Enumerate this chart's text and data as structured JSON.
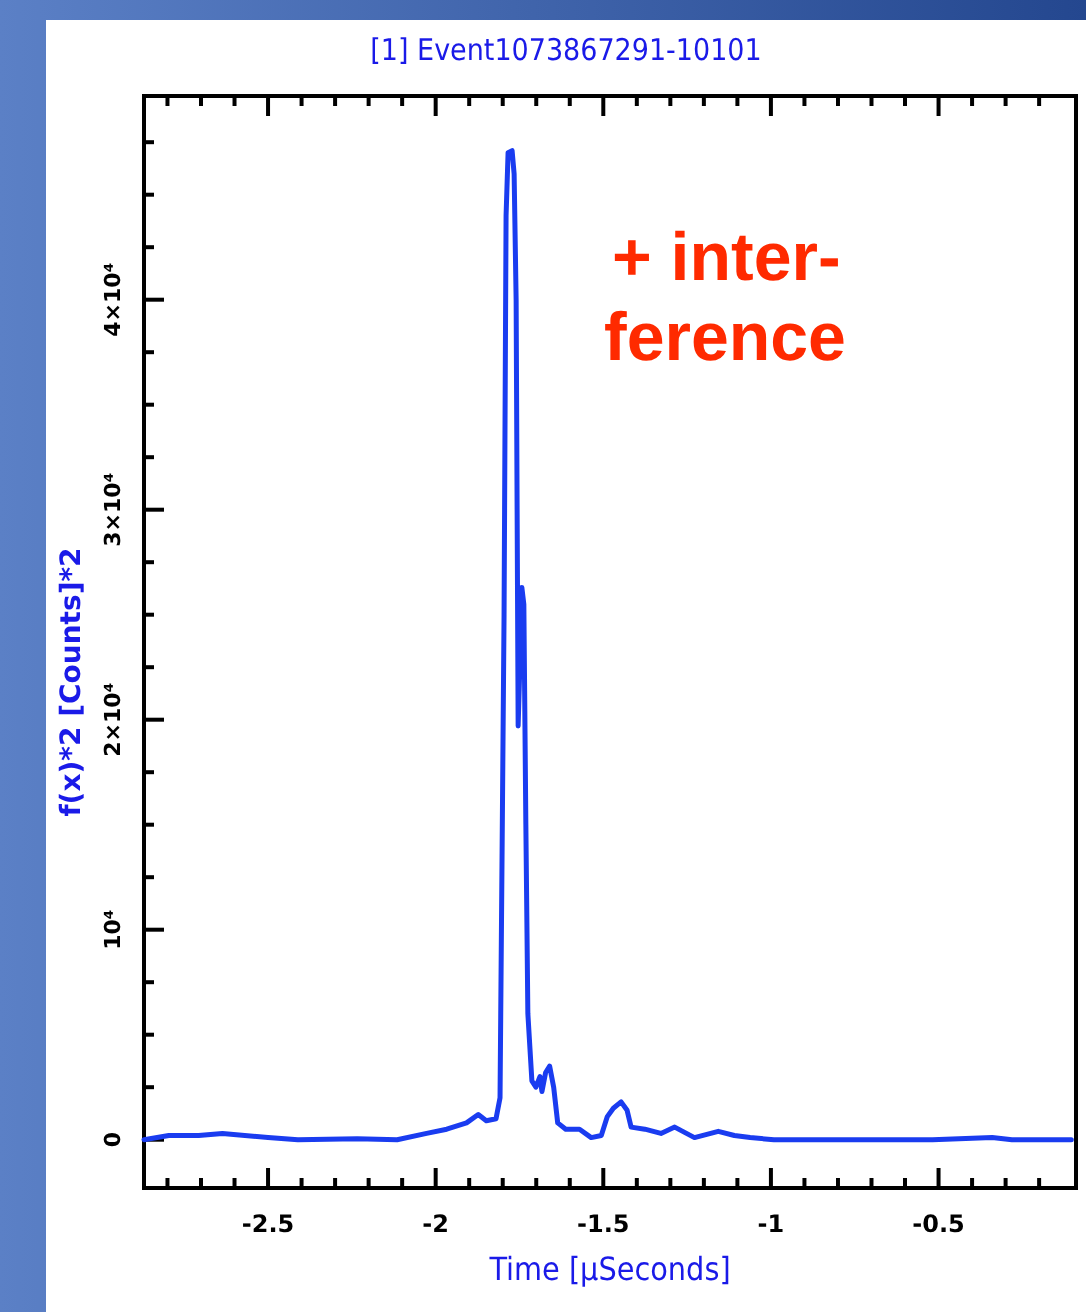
{
  "chart_data": {
    "type": "line",
    "title": "[1] Event1073867291-10101",
    "xlabel": "Time [μSeconds]",
    "ylabel": "f(x)*2 [Counts]*2",
    "annotations": [
      "+ inter-\nference"
    ],
    "x": [
      -2.87,
      -2.796,
      -2.707,
      -2.636,
      -2.5,
      -2.411,
      -2.234,
      -2.115,
      -2.027,
      -1.967,
      -1.908,
      -1.873,
      -1.849,
      -1.82,
      -1.808,
      -1.796,
      -1.79,
      -1.784,
      -1.772,
      -1.766,
      -1.76,
      -1.754,
      -1.749,
      -1.743,
      -1.737,
      -1.731,
      -1.725,
      -1.713,
      -1.701,
      -1.689,
      -1.683,
      -1.672,
      -1.66,
      -1.648,
      -1.636,
      -1.612,
      -1.571,
      -1.536,
      -1.506,
      -1.488,
      -1.47,
      -1.447,
      -1.429,
      -1.417,
      -1.376,
      -1.328,
      -1.287,
      -1.228,
      -1.157,
      -1.109,
      -1.062,
      -0.991,
      -0.754,
      -0.518,
      -0.34,
      -0.281,
      -0.104
    ],
    "series": [
      {
        "color": "#1a3cf0",
        "values": [
          0,
          200,
          200,
          300,
          100,
          0,
          50,
          0,
          300,
          500,
          800,
          1200,
          900,
          1000,
          2000,
          25000,
          44000,
          47000,
          47100,
          46000,
          40000,
          19700,
          22500,
          26300,
          25500,
          15000,
          6000,
          2800,
          2500,
          3000,
          2300,
          3200,
          3500,
          2500,
          800,
          500,
          500,
          100,
          200,
          1100,
          1500,
          1800,
          1400,
          600,
          500,
          300,
          600,
          100,
          400,
          200,
          100,
          0,
          0,
          0,
          100,
          0,
          0
        ]
      }
    ],
    "xlim": [
      -2.87,
      -0.09
    ],
    "ylim": [
      -2300,
      49700
    ],
    "xticks": [
      {
        "value": -2.8,
        "label": null
      },
      {
        "value": -2.7,
        "label": null
      },
      {
        "value": -2.6,
        "label": null
      },
      -2.5,
      {
        "value": -2.4,
        "label": null
      },
      {
        "value": -2.3,
        "label": null
      },
      {
        "value": -2.2,
        "label": null
      },
      {
        "value": -2.1,
        "label": null
      },
      -2,
      {
        "value": -1.9,
        "label": null
      },
      {
        "value": -1.8,
        "label": null
      },
      {
        "value": -1.7,
        "label": null
      },
      {
        "value": -1.6,
        "label": null
      },
      -1.5,
      {
        "value": -1.4,
        "label": null
      },
      {
        "value": -1.3,
        "label": null
      },
      {
        "value": -1.2,
        "label": null
      },
      {
        "value": -1.1,
        "label": null
      },
      -1,
      {
        "value": -0.9,
        "label": null
      },
      {
        "value": -0.8,
        "label": null
      },
      {
        "value": -0.7,
        "label": null
      },
      {
        "value": -0.6,
        "label": null
      },
      -0.5,
      {
        "value": -0.4,
        "label": null
      },
      {
        "value": -0.3,
        "label": null
      },
      {
        "value": -0.2,
        "label": null
      }
    ],
    "yticks": [
      0,
      {
        "value": 2500,
        "label": null
      },
      {
        "value": 5000,
        "label": null
      },
      {
        "value": 7500,
        "label": null
      },
      {
        "value": 10000,
        "label": "10⁴"
      },
      {
        "value": 12500,
        "label": null
      },
      {
        "value": 15000,
        "label": null
      },
      {
        "value": 17500,
        "label": null
      },
      {
        "value": 20000,
        "label": "2×10⁴"
      },
      {
        "value": 22500,
        "label": null
      },
      {
        "value": 25000,
        "label": null
      },
      {
        "value": 27500,
        "label": null
      },
      {
        "value": 30000,
        "label": "3×10⁴"
      },
      {
        "value": 32500,
        "label": null
      },
      {
        "value": 35000,
        "label": null
      },
      {
        "value": 37500,
        "label": null
      },
      {
        "value": 40000,
        "label": "4×10⁴"
      },
      {
        "value": 42500,
        "label": null
      },
      {
        "value": 45000,
        "label": null
      },
      {
        "value": 47500,
        "label": null
      }
    ],
    "grid": false,
    "marker": "none",
    "line_style": "solid"
  }
}
